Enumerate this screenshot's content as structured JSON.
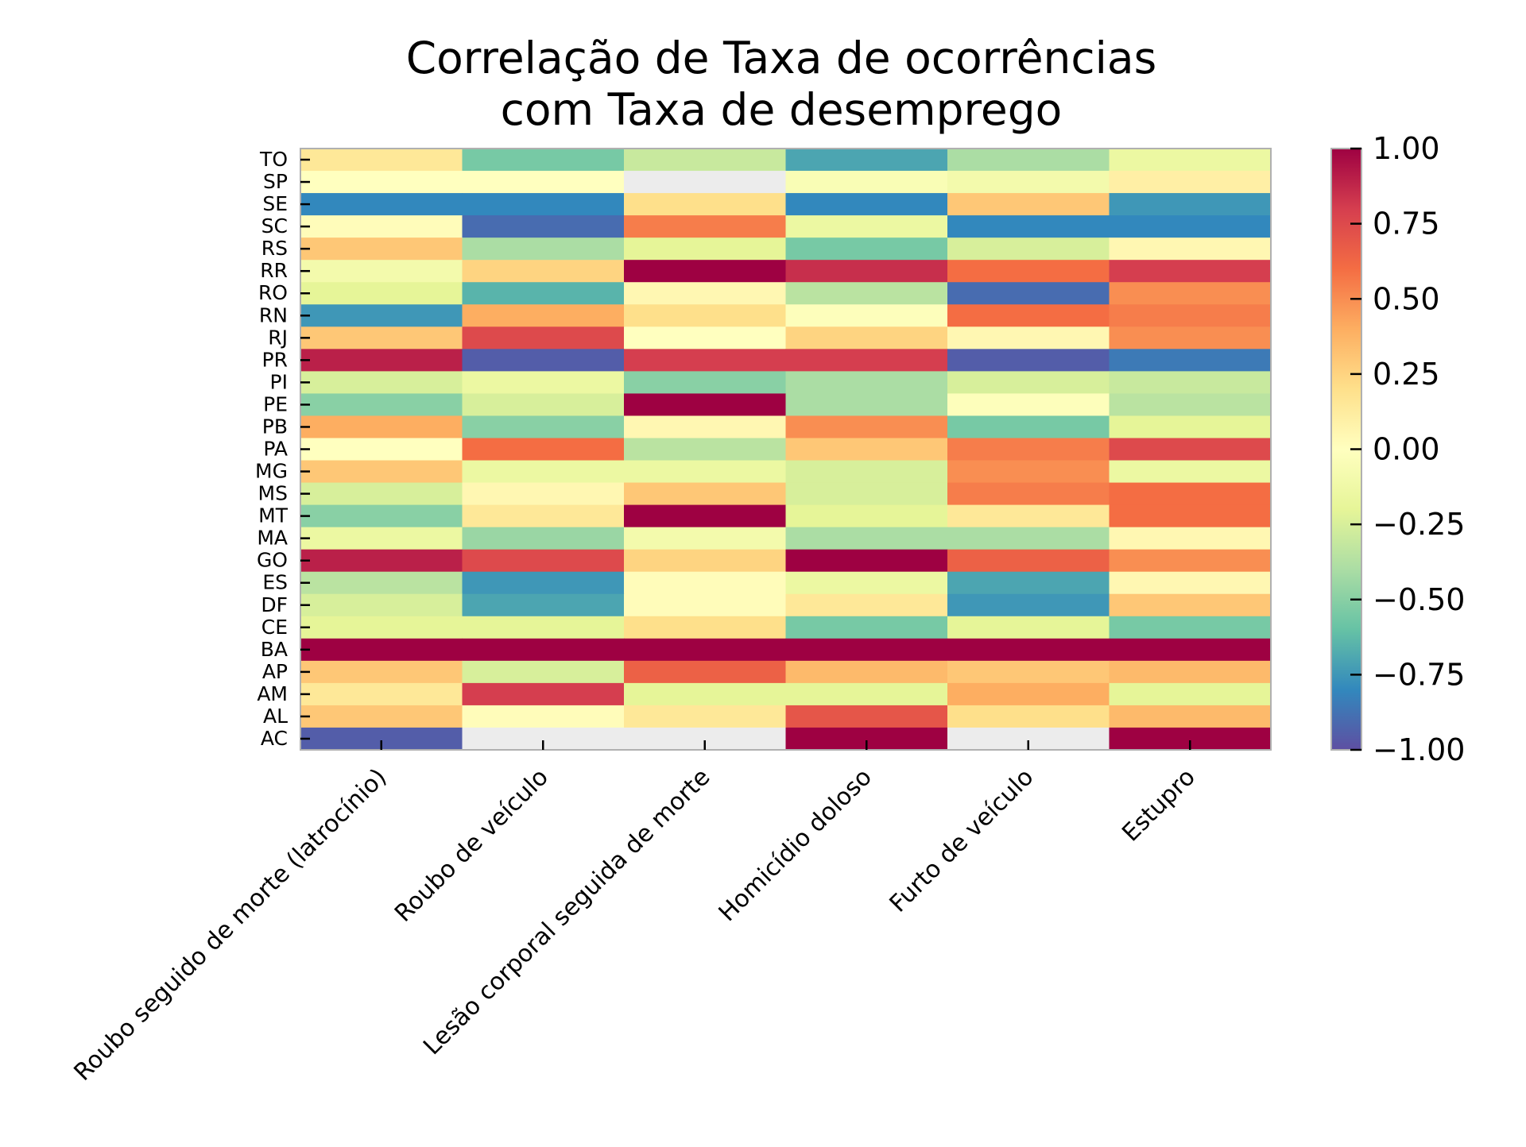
{
  "chart_data": {
    "type": "heatmap",
    "title_lines": [
      "Correlação de Taxa de ocorrências",
      "com Taxa de desemprego"
    ],
    "x_categories": [
      "Roubo seguido de morte (latrocínio)",
      "Roubo de veículo",
      "Lesão corporal seguida de morte",
      "Homicídio doloso",
      "Furto de veículo",
      "Estupro"
    ],
    "y_categories": [
      "TO",
      "SP",
      "SE",
      "SC",
      "RS",
      "RR",
      "RO",
      "RN",
      "RJ",
      "PR",
      "PI",
      "PE",
      "PB",
      "PA",
      "MG",
      "MS",
      "MT",
      "MA",
      "GO",
      "ES",
      "DF",
      "CE",
      "BA",
      "AP",
      "AM",
      "AL",
      "AC"
    ],
    "values": [
      [
        0.15,
        -0.55,
        -0.3,
        -0.7,
        -0.4,
        -0.15
      ],
      [
        0.0,
        0.0,
        null,
        -0.05,
        -0.1,
        0.1
      ],
      [
        -0.8,
        -0.8,
        0.2,
        -0.8,
        0.3,
        -0.75
      ],
      [
        0.02,
        -0.9,
        0.55,
        -0.15,
        -0.8,
        -0.8
      ],
      [
        0.3,
        -0.4,
        -0.2,
        -0.55,
        -0.25,
        0.05
      ],
      [
        -0.1,
        0.25,
        1.0,
        0.85,
        0.6,
        0.8
      ],
      [
        -0.2,
        -0.65,
        0.05,
        -0.35,
        -0.9,
        0.5
      ],
      [
        -0.75,
        0.4,
        0.2,
        -0.02,
        0.6,
        0.55
      ],
      [
        0.3,
        0.75,
        0.0,
        0.25,
        0.05,
        0.5
      ],
      [
        0.9,
        -0.95,
        0.8,
        0.8,
        -0.95,
        -0.85
      ],
      [
        -0.25,
        -0.15,
        -0.5,
        -0.4,
        -0.25,
        -0.3
      ],
      [
        -0.5,
        -0.25,
        1.0,
        -0.4,
        -0.02,
        -0.35
      ],
      [
        0.4,
        -0.5,
        0.05,
        0.5,
        -0.55,
        -0.2
      ],
      [
        0.0,
        0.6,
        -0.35,
        0.3,
        0.55,
        0.75
      ],
      [
        0.3,
        -0.15,
        -0.15,
        -0.25,
        0.5,
        -0.15
      ],
      [
        -0.25,
        0.05,
        0.3,
        -0.25,
        0.55,
        0.6
      ],
      [
        -0.5,
        0.15,
        1.0,
        -0.2,
        0.15,
        0.6
      ],
      [
        -0.15,
        -0.45,
        -0.1,
        -0.4,
        -0.4,
        0.05
      ],
      [
        0.9,
        0.75,
        0.25,
        1.0,
        0.65,
        0.5
      ],
      [
        -0.35,
        -0.75,
        0.02,
        -0.15,
        -0.7,
        0.05
      ],
      [
        -0.25,
        -0.7,
        0.02,
        0.15,
        -0.75,
        0.3
      ],
      [
        -0.2,
        -0.2,
        0.2,
        -0.55,
        -0.2,
        -0.55
      ],
      [
        1.0,
        1.0,
        1.0,
        1.0,
        1.0,
        1.0
      ],
      [
        0.3,
        -0.25,
        0.65,
        0.35,
        0.3,
        0.35
      ],
      [
        0.15,
        0.8,
        -0.2,
        -0.2,
        0.4,
        -0.2
      ],
      [
        0.3,
        0.02,
        0.15,
        0.7,
        0.2,
        0.35
      ],
      [
        -0.95,
        null,
        null,
        1.0,
        null,
        1.0
      ]
    ],
    "vmin": -1.0,
    "vmax": 1.0,
    "colormap": "Spectral_r",
    "missing_color": "#ececec",
    "colorbar_ticks": [
      "1.00",
      "0.75",
      "0.50",
      "0.25",
      "0.00",
      "−0.25",
      "−0.50",
      "−0.75",
      "−1.00"
    ],
    "colorbar_tick_values": [
      1.0,
      0.75,
      0.5,
      0.25,
      0.0,
      -0.25,
      -0.5,
      -0.75,
      -1.0
    ],
    "grid": false
  }
}
